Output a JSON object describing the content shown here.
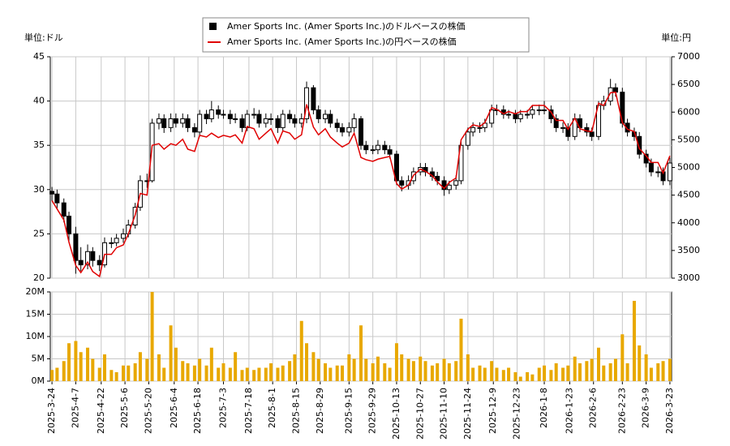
{
  "chart_data": [
    {
      "type": "candlestick",
      "candle_name": "Amer Sports Inc. (Amer Sports Inc.)のドルベースの株価",
      "candle_color": "#000000",
      "y_label": "単位:ドル",
      "y2_label": "単位:円",
      "xlim": [
        "2025-3-23",
        "2026-3-24"
      ],
      "x": [
        "2025-3-24",
        "2025-3-27",
        "2025-3-31",
        "2025-4-3",
        "2025-4-7",
        "2025-4-10",
        "2025-4-14",
        "2025-4-17",
        "2025-4-21",
        "2025-4-24",
        "2025-4-28",
        "2025-5-1",
        "2025-5-5",
        "2025-5-8",
        "2025-5-12",
        "2025-5-15",
        "2025-5-19",
        "2025-5-22",
        "2025-5-26",
        "2025-5-29",
        "2025-6-2",
        "2025-6-5",
        "2025-6-9",
        "2025-6-12",
        "2025-6-16",
        "2025-6-19",
        "2025-6-23",
        "2025-6-26",
        "2025-6-30",
        "2025-7-3",
        "2025-7-7",
        "2025-7-10",
        "2025-7-14",
        "2025-7-17",
        "2025-7-21",
        "2025-7-24",
        "2025-7-28",
        "2025-7-31",
        "2025-8-4",
        "2025-8-7",
        "2025-8-11",
        "2025-8-14",
        "2025-8-18",
        "2025-8-21",
        "2025-8-25",
        "2025-8-28",
        "2025-9-1",
        "2025-9-4",
        "2025-9-8",
        "2025-9-11",
        "2025-9-15",
        "2025-9-18",
        "2025-9-22",
        "2025-9-25",
        "2025-9-29",
        "2025-10-2",
        "2025-10-6",
        "2025-10-9",
        "2025-10-13",
        "2025-10-16",
        "2025-10-20",
        "2025-10-23",
        "2025-10-27",
        "2025-10-30",
        "2025-11-3",
        "2025-11-6",
        "2025-11-10",
        "2025-11-13",
        "2025-11-17",
        "2025-11-20",
        "2025-11-24",
        "2025-11-27",
        "2025-12-1",
        "2025-12-4",
        "2025-12-8",
        "2025-12-11",
        "2025-12-15",
        "2025-12-18",
        "2025-12-22",
        "2025-12-25",
        "2025-12-29",
        "2026-1-1",
        "2026-1-5",
        "2026-1-8",
        "2026-1-12",
        "2026-1-15",
        "2026-1-19",
        "2026-1-22",
        "2026-1-26",
        "2026-1-29",
        "2026-2-2",
        "2026-2-5",
        "2026-2-9",
        "2026-2-12",
        "2026-2-16",
        "2026-2-19",
        "2026-2-23",
        "2026-2-26",
        "2026-3-2",
        "2026-3-5",
        "2026-3-9",
        "2026-3-12",
        "2026-3-16",
        "2026-3-19",
        "2026-3-23"
      ],
      "open": [
        29.8,
        29.5,
        28.5,
        27,
        25,
        22,
        21.5,
        23,
        22,
        21.5,
        24,
        24,
        24.5,
        25,
        26,
        28,
        31,
        31,
        37.5,
        38,
        37,
        38,
        37.5,
        38,
        37,
        36.5,
        38.5,
        38,
        39,
        38.5,
        38.5,
        38,
        38,
        37,
        38.5,
        38.5,
        37.5,
        38,
        38,
        37,
        38.5,
        38,
        37.5,
        38,
        41.5,
        39,
        38,
        38.5,
        37.5,
        37,
        36.5,
        37,
        38,
        35,
        34.5,
        34.5,
        35,
        34.5,
        34,
        31,
        30.5,
        31,
        32,
        32.5,
        32,
        31.5,
        31,
        30,
        30.5,
        31,
        35,
        36.5,
        37,
        37,
        37.5,
        39,
        39,
        38.5,
        38.5,
        38,
        38.5,
        38.5,
        39,
        39,
        39,
        38,
        37,
        37,
        36,
        38,
        37,
        36.5,
        36,
        39.5,
        40,
        41.5,
        41,
        37.5,
        36.5,
        36,
        34,
        33,
        32,
        32,
        31
      ],
      "high": [
        30.3,
        30,
        29,
        27.5,
        25.8,
        23.5,
        23.8,
        23.5,
        22.6,
        24.6,
        24.6,
        25,
        25.6,
        26.6,
        28.5,
        31.6,
        31.8,
        38,
        38.6,
        38.5,
        38.6,
        38.6,
        38.6,
        38.5,
        37.5,
        39,
        39,
        40,
        39.5,
        39,
        39,
        38.6,
        38.5,
        39,
        39.2,
        39,
        38.6,
        38.6,
        38.4,
        39,
        39,
        38.5,
        38.6,
        42.2,
        41.8,
        39.5,
        39,
        39,
        38,
        37.5,
        37.6,
        38.6,
        38.3,
        35.5,
        35,
        35.6,
        35.5,
        35,
        34.4,
        31.5,
        31.6,
        32.5,
        33,
        33,
        32.5,
        32,
        31.5,
        31,
        31.6,
        35.6,
        37,
        37.6,
        37.6,
        38,
        39.6,
        39.6,
        39.5,
        39,
        39,
        39,
        39,
        39.5,
        39.6,
        40,
        39.5,
        38.5,
        37.6,
        37.5,
        38.6,
        38.5,
        37.5,
        37,
        40,
        40.6,
        42.5,
        42,
        41.5,
        38,
        37,
        36.5,
        34.5,
        33.5,
        32.6,
        32.5,
        33.6
      ],
      "low": [
        28.7,
        27.8,
        26.3,
        24.2,
        20.5,
        20.8,
        21,
        21.3,
        20.8,
        21.2,
        23.4,
        23.6,
        24,
        24.6,
        25.6,
        27.6,
        30.2,
        30.8,
        36.8,
        36.4,
        36.5,
        37,
        37,
        36.5,
        35.9,
        36,
        37.4,
        37.6,
        38,
        38,
        37.4,
        37.5,
        36.5,
        36.6,
        38,
        37,
        37,
        37.3,
        36.4,
        36.6,
        37.5,
        37,
        37,
        37.5,
        38.5,
        37.5,
        37.5,
        37,
        36.5,
        36,
        36,
        36.5,
        34.5,
        34,
        34,
        34,
        34,
        33.5,
        30.5,
        29.8,
        30,
        30.6,
        31.6,
        31.5,
        31,
        30.5,
        29.3,
        29.5,
        30,
        30.6,
        34.5,
        36,
        36.4,
        36.5,
        37,
        38.4,
        38,
        38,
        37.5,
        37.6,
        38,
        38,
        38.4,
        38.5,
        37.5,
        36.5,
        36.4,
        35.5,
        35.6,
        36.5,
        36,
        35.5,
        35.6,
        39,
        39.5,
        40.5,
        37,
        36,
        35.5,
        33.5,
        32.5,
        31.5,
        31.4,
        30.5,
        30.5
      ],
      "close": [
        29.5,
        28.5,
        27,
        25,
        22,
        21.5,
        23,
        22,
        21.5,
        24,
        24,
        24.5,
        25,
        26,
        28,
        31,
        31,
        37.5,
        38,
        37,
        38,
        37.5,
        38,
        37,
        36.5,
        38.5,
        38,
        39,
        38.5,
        38.5,
        38,
        38,
        37,
        38.5,
        38.5,
        37.5,
        38,
        38,
        37,
        38.5,
        38,
        37.5,
        38,
        41.5,
        39,
        38,
        38.5,
        37.5,
        37,
        36.5,
        37,
        38,
        35,
        34.5,
        34.5,
        35,
        34.5,
        34,
        31,
        30.5,
        31,
        32,
        32.5,
        32,
        31.5,
        31,
        30,
        30.5,
        31,
        35,
        36.5,
        37,
        37,
        37.5,
        39,
        39,
        38.5,
        38.5,
        38,
        38.5,
        38.5,
        39,
        39,
        39,
        38,
        37,
        37,
        36,
        38,
        37,
        36.5,
        36,
        39.5,
        40,
        41.5,
        41,
        37.5,
        36.5,
        36,
        34,
        33,
        32,
        32,
        31,
        33
      ],
      "series": [
        {
          "name": "Amer Sports Inc. (Amer Sports Inc.)の円ベースの株価",
          "color": "#e00000",
          "axis": "y2",
          "values": [
            4400,
            4250,
            4050,
            3650,
            3230,
            3100,
            3290,
            3120,
            3030,
            3430,
            3430,
            3550,
            3600,
            3800,
            4140,
            4530,
            4500,
            5400,
            5430,
            5330,
            5430,
            5400,
            5510,
            5330,
            5290,
            5580,
            5550,
            5620,
            5540,
            5580,
            5550,
            5590,
            5440,
            5740,
            5700,
            5510,
            5620,
            5700,
            5440,
            5660,
            5620,
            5510,
            5590,
            6140,
            5730,
            5590,
            5700,
            5550,
            5440,
            5370,
            5440,
            5620,
            5180,
            5140,
            5110,
            5150,
            5180,
            5200,
            4710,
            4610,
            4680,
            4860,
            4970,
            4930,
            4850,
            4740,
            4620,
            4730,
            4810,
            5500,
            5690,
            5770,
            5740,
            5810,
            6080,
            6050,
            5970,
            6010,
            5970,
            6010,
            6010,
            6120,
            6120,
            6120,
            6000,
            5850,
            5850,
            5690,
            5890,
            5700,
            5660,
            5650,
            6160,
            6120,
            6350,
            6360,
            5810,
            5690,
            5650,
            5340,
            5210,
            5090,
            5090,
            4900,
            5210
          ]
        }
      ],
      "ylim": [
        20,
        45
      ],
      "yticks": [
        20,
        25,
        30,
        35,
        40,
        45
      ],
      "y2lim": [
        3000,
        7000
      ],
      "y2ticks": [
        3000,
        3500,
        4000,
        4500,
        5000,
        5500,
        6000,
        6500,
        7000
      ],
      "grid": true
    },
    {
      "type": "bar",
      "color": "#e8a800",
      "xlim": [
        "2025-3-23",
        "2026-3-24"
      ],
      "x": [
        "2025-3-24",
        "2025-3-27",
        "2025-3-31",
        "2025-4-3",
        "2025-4-7",
        "2025-4-10",
        "2025-4-14",
        "2025-4-17",
        "2025-4-21",
        "2025-4-24",
        "2025-4-28",
        "2025-5-1",
        "2025-5-5",
        "2025-5-8",
        "2025-5-12",
        "2025-5-15",
        "2025-5-19",
        "2025-5-22",
        "2025-5-26",
        "2025-5-29",
        "2025-6-2",
        "2025-6-5",
        "2025-6-9",
        "2025-6-12",
        "2025-6-16",
        "2025-6-19",
        "2025-6-23",
        "2025-6-26",
        "2025-6-30",
        "2025-7-3",
        "2025-7-7",
        "2025-7-10",
        "2025-7-14",
        "2025-7-17",
        "2025-7-21",
        "2025-7-24",
        "2025-7-28",
        "2025-7-31",
        "2025-8-4",
        "2025-8-7",
        "2025-8-11",
        "2025-8-14",
        "2025-8-18",
        "2025-8-21",
        "2025-8-25",
        "2025-8-28",
        "2025-9-1",
        "2025-9-4",
        "2025-9-8",
        "2025-9-11",
        "2025-9-15",
        "2025-9-18",
        "2025-9-22",
        "2025-9-25",
        "2025-9-29",
        "2025-10-2",
        "2025-10-6",
        "2025-10-9",
        "2025-10-13",
        "2025-10-16",
        "2025-10-20",
        "2025-10-23",
        "2025-10-27",
        "2025-10-30",
        "2025-11-3",
        "2025-11-6",
        "2025-11-10",
        "2025-11-13",
        "2025-11-17",
        "2025-11-20",
        "2025-11-24",
        "2025-11-27",
        "2025-12-1",
        "2025-12-4",
        "2025-12-8",
        "2025-12-11",
        "2025-12-15",
        "2025-12-18",
        "2025-12-22",
        "2025-12-25",
        "2025-12-29",
        "2026-1-1",
        "2026-1-5",
        "2026-1-8",
        "2026-1-12",
        "2026-1-15",
        "2026-1-19",
        "2026-1-22",
        "2026-1-26",
        "2026-1-29",
        "2026-2-2",
        "2026-2-5",
        "2026-2-9",
        "2026-2-12",
        "2026-2-16",
        "2026-2-19",
        "2026-2-23",
        "2026-2-26",
        "2026-3-2",
        "2026-3-5",
        "2026-3-9",
        "2026-3-12",
        "2026-3-16",
        "2026-3-19",
        "2026-3-23"
      ],
      "values": [
        2500000,
        3000000,
        4500000,
        8500000,
        9000000,
        6500000,
        7500000,
        5000000,
        3000000,
        6000000,
        2500000,
        2000000,
        3500000,
        3500000,
        4000000,
        6500000,
        5000000,
        20000000,
        6000000,
        3000000,
        12500000,
        7500000,
        4500000,
        4000000,
        3500000,
        5000000,
        3500000,
        7500000,
        3000000,
        4000000,
        3000000,
        6500000,
        2500000,
        3000000,
        2500000,
        3000000,
        3000000,
        4000000,
        3000000,
        3500000,
        4500000,
        6000000,
        13500000,
        8500000,
        6500000,
        5000000,
        4000000,
        3000000,
        3500000,
        3500000,
        6000000,
        5000000,
        12500000,
        5000000,
        4000000,
        5500000,
        4000000,
        3000000,
        8500000,
        6000000,
        5000000,
        4500000,
        5500000,
        4500000,
        3500000,
        4000000,
        5000000,
        4000000,
        4500000,
        14000000,
        6000000,
        3000000,
        3500000,
        3000000,
        4500000,
        3000000,
        2500000,
        3000000,
        2000000,
        1000000,
        2000000,
        1500000,
        3000000,
        3500000,
        2500000,
        4000000,
        3000000,
        3500000,
        5500000,
        4000000,
        4500000,
        5000000,
        7500000,
        3500000,
        4000000,
        5000000,
        10500000,
        4000000,
        18000000,
        8000000,
        6000000,
        3000000,
        4000000,
        4500000,
        5000000
      ],
      "ylim": [
        0,
        20000000
      ],
      "yticks": [
        {
          "value": 0,
          "label": "0M"
        },
        {
          "value": 5000000,
          "label": "5M"
        },
        {
          "value": 10000000,
          "label": "10M"
        },
        {
          "value": 15000000,
          "label": "15M"
        },
        {
          "value": 20000000,
          "label": "20M"
        }
      ],
      "xticks": [
        "2025-3-24",
        "2025-4-7",
        "2025-4-22",
        "2025-5-6",
        "2025-5-20",
        "2025-6-4",
        "2025-6-18",
        "2025-7-3",
        "2025-7-18",
        "2025-8-1",
        "2025-8-15",
        "2025-8-29",
        "2025-9-15",
        "2025-9-29",
        "2025-10-13",
        "2025-10-27",
        "2025-11-10",
        "2025-11-24",
        "2025-12-9",
        "2025-12-23",
        "2026-1-8",
        "2026-1-23",
        "2026-2-6",
        "2026-2-23",
        "2026-3-9",
        "2026-3-23"
      ],
      "grid": true
    }
  ]
}
